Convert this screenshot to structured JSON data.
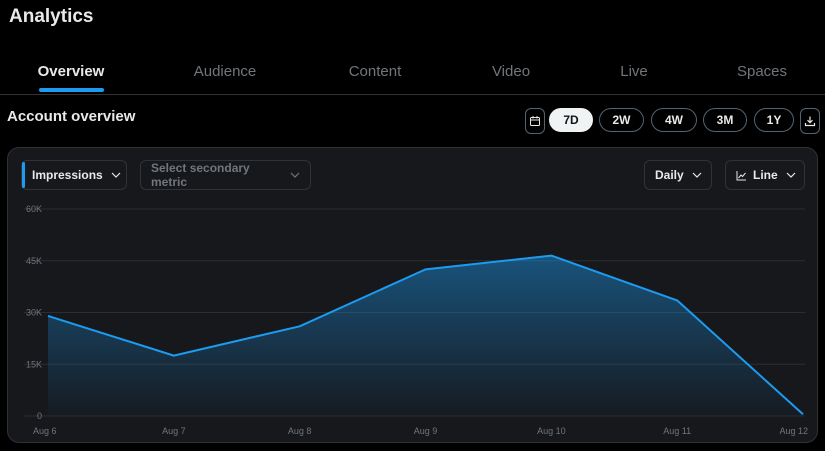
{
  "app": {
    "title": "Analytics"
  },
  "tabs": [
    {
      "label": "Overview",
      "active": true
    },
    {
      "label": "Audience",
      "active": false
    },
    {
      "label": "Content",
      "active": false
    },
    {
      "label": "Video",
      "active": false
    },
    {
      "label": "Live",
      "active": false
    },
    {
      "label": "Spaces",
      "active": false
    }
  ],
  "section": {
    "title": "Account overview"
  },
  "range": {
    "calendar_icon": "calendar-icon",
    "options": [
      "7D",
      "2W",
      "4W",
      "3M",
      "1Y"
    ],
    "selected": "7D",
    "download_icon": "download-icon"
  },
  "controls": {
    "primary_metric": "Impressions",
    "secondary_metric_placeholder": "Select secondary metric",
    "granularity": "Daily",
    "chart_type": "Line",
    "chart_type_icon": "line-chart-icon"
  },
  "colors": {
    "accent": "#1d9bf0",
    "background": "#000000",
    "card": "#16181c",
    "muted_text": "#71767b"
  },
  "chart_data": {
    "type": "area",
    "categories": [
      "Aug 6",
      "Aug 7",
      "Aug 8",
      "Aug 9",
      "Aug 10",
      "Aug 11",
      "Aug 12"
    ],
    "series": [
      {
        "values": [
          29000,
          17500,
          26000,
          42500,
          46500,
          33500,
          500
        ]
      }
    ],
    "y_ticks": [
      "60K",
      "45K",
      "30K",
      "15K",
      "0"
    ],
    "ylim": [
      0,
      60000
    ],
    "grid": true,
    "legend": "none"
  }
}
